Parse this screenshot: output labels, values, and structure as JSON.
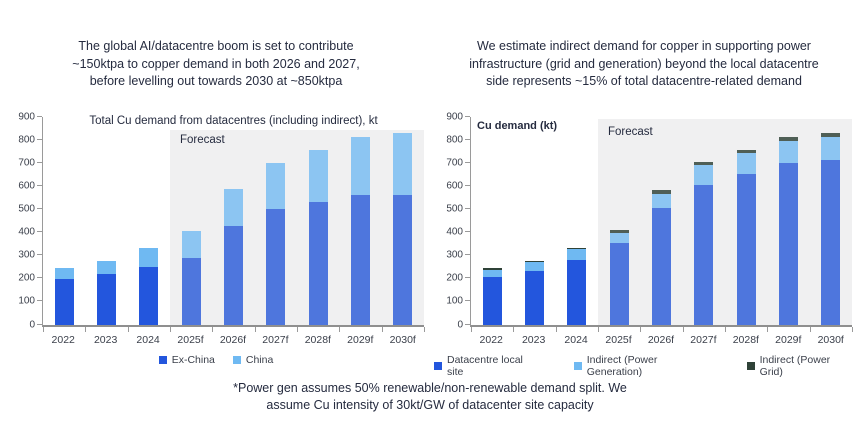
{
  "footnote": "*Power gen assumes 50% renewable/non-renewable demand split. We\nassume Cu intensity of 30kt/GW of datacenter site capacity",
  "colors": {
    "headline_text": "#252b3f",
    "tick_text": "#3a3f4a",
    "axis_line": "#9a9a9a",
    "forecast_background": "#f0f0f1"
  },
  "chart_data": [
    {
      "type": "bar",
      "stacked": true,
      "headline": "The global AI/datacentre boom is set to contribute\n~150ktpa to copper demand in both 2026 and 2027,\nbefore levelling out towards 2030 at ~850ktpa",
      "title": "Total Cu demand from datacentres (including indirect), kt",
      "title_align": "center",
      "forecast_label": "Forecast",
      "forecast_start_index": 3,
      "categories": [
        "2022",
        "2023",
        "2024",
        "2025f",
        "2026f",
        "2027f",
        "2028f",
        "2029f",
        "2030f"
      ],
      "ylim": [
        0,
        900
      ],
      "ytick_step": 100,
      "gridlines": false,
      "legend_position": "bottom",
      "series": [
        {
          "name": "Ex-China",
          "values": [
            195,
            220,
            248,
            288,
            425,
            500,
            530,
            560,
            562
          ],
          "color": "#2356dd",
          "forecast_color": "#4e76dd"
        },
        {
          "name": "China",
          "values": [
            50,
            55,
            82,
            117,
            160,
            200,
            225,
            250,
            268
          ],
          "color": "#6fb9f2",
          "forecast_color": "#8cc5f2"
        }
      ]
    },
    {
      "type": "bar",
      "stacked": true,
      "headline": "We estimate indirect demand for copper in supporting power\ninfrastructure (grid and generation) beyond the local datacentre\nside represents ~15% of total datacentre-related demand",
      "title": "Cu demand (kt)",
      "title_align": "left",
      "forecast_label": "Forecast",
      "forecast_start_index": 3,
      "categories": [
        "2022",
        "2023",
        "2024",
        "2025f",
        "2026f",
        "2027f",
        "2028f",
        "2029f",
        "2030f"
      ],
      "ylim": [
        0,
        900
      ],
      "ytick_step": 100,
      "gridlines": false,
      "legend_position": "bottom",
      "series": [
        {
          "name": "Datacentre local site",
          "values": [
            207,
            232,
            280,
            352,
            505,
            605,
            650,
            698,
            712
          ],
          "color": "#2356dd",
          "forecast_color": "#4e76dd"
        },
        {
          "name": "Indirect (Power Generation)",
          "values": [
            31,
            38,
            45,
            46,
            62,
            85,
            93,
            97,
            101
          ],
          "color": "#6fb9f2",
          "forecast_color": "#8cc5f2"
        },
        {
          "name": "Indirect (Power Grid)",
          "values": [
            7,
            7,
            7,
            9,
            16,
            12,
            14,
            15,
            17
          ],
          "color": "#2f4238",
          "forecast_color": "#4f5f56"
        }
      ]
    }
  ]
}
